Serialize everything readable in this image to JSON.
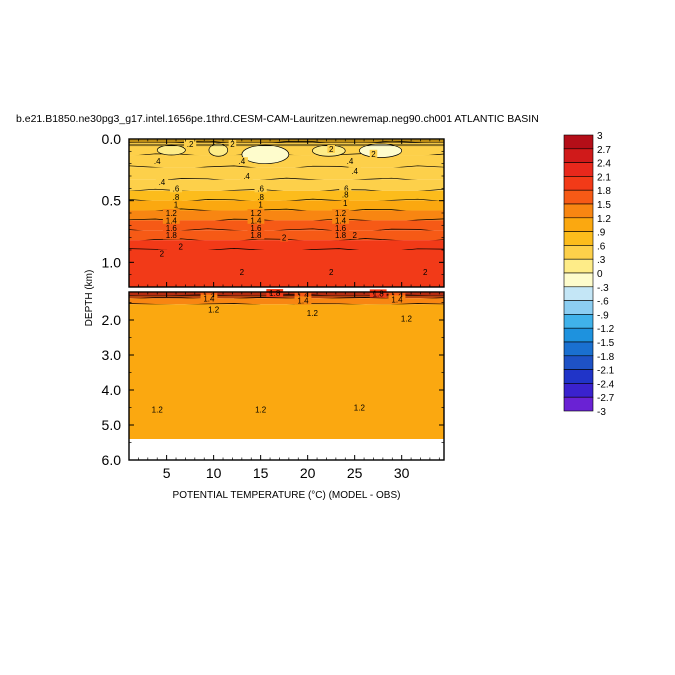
{
  "chart_data": {
    "type": "heatmap",
    "title": "b.e21.B1850.ne30pg3_g17.intel.1656pe.1thrd.CESM-CAM-Lauritzen.newremap.neg90.ch001 ATLANTIC BASIN",
    "xlabel": "POTENTIAL TEMPERATURE (°C) (MODEL - OBS)",
    "ylabel": "DEPTH (km)",
    "xlim": [
      1,
      34.5
    ],
    "x_ticks": [
      5,
      10,
      15,
      20,
      25,
      30
    ],
    "x_tick_labels": [
      "5",
      "10",
      "15",
      "20",
      "25",
      "30"
    ],
    "panels": [
      {
        "name": "upper",
        "ylim": [
          0,
          1.2
        ],
        "y_ticks": [
          0.0,
          0.5,
          1.0
        ],
        "y_tick_labels": [
          "0.0",
          "0.5",
          "1.0"
        ],
        "layers": [
          {
            "depth": [
              0.0,
              0.03
            ],
            "value": 0.9
          },
          {
            "depth": [
              0.03,
              0.13
            ],
            "value": 0.45
          },
          {
            "depth": [
              0.13,
              0.23
            ],
            "value": 0.45
          },
          {
            "depth": [
              0.23,
              0.33
            ],
            "value": 0.5
          },
          {
            "depth": [
              0.33,
              0.42
            ],
            "value": 0.6
          },
          {
            "depth": [
              0.42,
              0.5
            ],
            "value": 0.9
          },
          {
            "depth": [
              0.5,
              0.58
            ],
            "value": 1.1
          },
          {
            "depth": [
              0.58,
              0.66
            ],
            "value": 1.35
          },
          {
            "depth": [
              0.66,
              0.74
            ],
            "value": 1.6
          },
          {
            "depth": [
              0.74,
              0.82
            ],
            "value": 1.8
          },
          {
            "depth": [
              0.82,
              0.9
            ],
            "value": 1.95
          },
          {
            "depth": [
              0.9,
              1.2
            ],
            "value": 2.05
          }
        ],
        "patches": [
          {
            "x": [
              4,
              7
            ],
            "depth": [
              0.05,
              0.13
            ],
            "value": 0.1
          },
          {
            "x": [
              9.5,
              11.5
            ],
            "depth": [
              0.04,
              0.14
            ],
            "value": 0.2
          },
          {
            "x": [
              13,
              18
            ],
            "depth": [
              0.05,
              0.2
            ],
            "value": 0.0
          },
          {
            "x": [
              20.5,
              24
            ],
            "depth": [
              0.05,
              0.14
            ],
            "value": 0.1
          },
          {
            "x": [
              25.5,
              30
            ],
            "depth": [
              0.04,
              0.15
            ],
            "value": 0.0
          }
        ],
        "contour_labels": [
          {
            "x": 7.5,
            "depth": 0.04,
            "text": ".2"
          },
          {
            "x": 12,
            "depth": 0.04,
            "text": "2"
          },
          {
            "x": 22.5,
            "depth": 0.08,
            "text": "2"
          },
          {
            "x": 27,
            "depth": 0.12,
            "text": "2"
          },
          {
            "x": 4,
            "depth": 0.18,
            "text": ".4"
          },
          {
            "x": 13,
            "depth": 0.18,
            "text": ".4"
          },
          {
            "x": 24.5,
            "depth": 0.18,
            "text": ".4"
          },
          {
            "x": 4.5,
            "depth": 0.35,
            "text": ".4"
          },
          {
            "x": 13.5,
            "depth": 0.3,
            "text": ".4"
          },
          {
            "x": 25,
            "depth": 0.26,
            "text": ".4"
          },
          {
            "x": 6,
            "depth": 0.4,
            "text": ".6"
          },
          {
            "x": 15,
            "depth": 0.4,
            "text": ".6"
          },
          {
            "x": 24,
            "depth": 0.4,
            "text": ".6"
          },
          {
            "x": 6,
            "depth": 0.47,
            "text": ".8"
          },
          {
            "x": 15,
            "depth": 0.47,
            "text": ".8"
          },
          {
            "x": 24,
            "depth": 0.45,
            "text": ".8"
          },
          {
            "x": 6,
            "depth": 0.53,
            "text": "1"
          },
          {
            "x": 15,
            "depth": 0.53,
            "text": "1"
          },
          {
            "x": 24,
            "depth": 0.52,
            "text": "1"
          },
          {
            "x": 5.5,
            "depth": 0.6,
            "text": "1.2"
          },
          {
            "x": 14.5,
            "depth": 0.6,
            "text": "1.2"
          },
          {
            "x": 23.5,
            "depth": 0.6,
            "text": "1.2"
          },
          {
            "x": 5.5,
            "depth": 0.66,
            "text": "1.4"
          },
          {
            "x": 14.5,
            "depth": 0.66,
            "text": "1.4"
          },
          {
            "x": 23.5,
            "depth": 0.66,
            "text": "1.4"
          },
          {
            "x": 5.5,
            "depth": 0.72,
            "text": "1.6"
          },
          {
            "x": 14.5,
            "depth": 0.72,
            "text": "1.6"
          },
          {
            "x": 23.5,
            "depth": 0.72,
            "text": "1.6"
          },
          {
            "x": 5.5,
            "depth": 0.78,
            "text": "1.8"
          },
          {
            "x": 14.5,
            "depth": 0.78,
            "text": "1.8"
          },
          {
            "x": 23.5,
            "depth": 0.78,
            "text": "1.8"
          },
          {
            "x": 6.5,
            "depth": 0.87,
            "text": "2"
          },
          {
            "x": 17.5,
            "depth": 0.8,
            "text": "2"
          },
          {
            "x": 25,
            "depth": 0.78,
            "text": "2"
          },
          {
            "x": 4.5,
            "depth": 0.93,
            "text": "2"
          },
          {
            "x": 13,
            "depth": 1.08,
            "text": "2"
          },
          {
            "x": 22.5,
            "depth": 1.08,
            "text": "2"
          },
          {
            "x": 32.5,
            "depth": 1.08,
            "text": "2"
          }
        ]
      },
      {
        "name": "lower",
        "ylim": [
          1.2,
          6.0
        ],
        "y_ticks": [
          2.0,
          3.0,
          4.0,
          5.0,
          6.0
        ],
        "y_tick_labels": [
          "2.0",
          "3.0",
          "4.0",
          "5.0",
          "6.0"
        ],
        "no_data_below_depth": 5.4,
        "layers": [
          {
            "depth": [
              1.2,
              1.3
            ],
            "value": 1.9
          },
          {
            "depth": [
              1.3,
              1.38
            ],
            "value": 1.55
          },
          {
            "depth": [
              1.38,
              1.55
            ],
            "value": 1.35
          },
          {
            "depth": [
              1.55,
              5.4
            ],
            "value": 1.15
          }
        ],
        "contour_labels": [
          {
            "x": 16.5,
            "depth": 1.23,
            "text": "1.8"
          },
          {
            "x": 27.5,
            "depth": 1.24,
            "text": "1.8"
          },
          {
            "x": 9.5,
            "depth": 1.33,
            "text": "1.6"
          },
          {
            "x": 19.5,
            "depth": 1.33,
            "text": "1.6"
          },
          {
            "x": 29.5,
            "depth": 1.33,
            "text": "1.6"
          },
          {
            "x": 9.5,
            "depth": 1.39,
            "text": "1.4"
          },
          {
            "x": 19.5,
            "depth": 1.44,
            "text": "1.4"
          },
          {
            "x": 29.5,
            "depth": 1.41,
            "text": "1.4"
          },
          {
            "x": 10,
            "depth": 1.7,
            "text": "1.2"
          },
          {
            "x": 20.5,
            "depth": 1.8,
            "text": "1.2"
          },
          {
            "x": 30.5,
            "depth": 1.95,
            "text": "1.2"
          },
          {
            "x": 4,
            "depth": 4.55,
            "text": "1.2"
          },
          {
            "x": 15,
            "depth": 4.55,
            "text": "1.2"
          },
          {
            "x": 25.5,
            "depth": 4.5,
            "text": "1.2"
          }
        ]
      }
    ],
    "colorbar": {
      "levels": [
        "3",
        "2.7",
        "2.4",
        "2.1",
        "1.8",
        "1.5",
        "1.2",
        ".9",
        ".6",
        ".3",
        "0",
        "-.3",
        "-.6",
        "-.9",
        "-1.2",
        "-1.5",
        "-1.8",
        "-2.1",
        "-2.4",
        "-2.7",
        "-3"
      ],
      "colors": [
        "#b40e18",
        "#d01a1a",
        "#e8281c",
        "#f23a18",
        "#f65a16",
        "#f88612",
        "#fba810",
        "#fcbc1c",
        "#fdd04a",
        "#feec88",
        "#fefccc",
        "#c4e6f6",
        "#8ccef2",
        "#40b2ea",
        "#1e92de",
        "#1a70d0",
        "#1e52c6",
        "#2034c8",
        "#3a22ce",
        "#6a22d4"
      ]
    }
  }
}
